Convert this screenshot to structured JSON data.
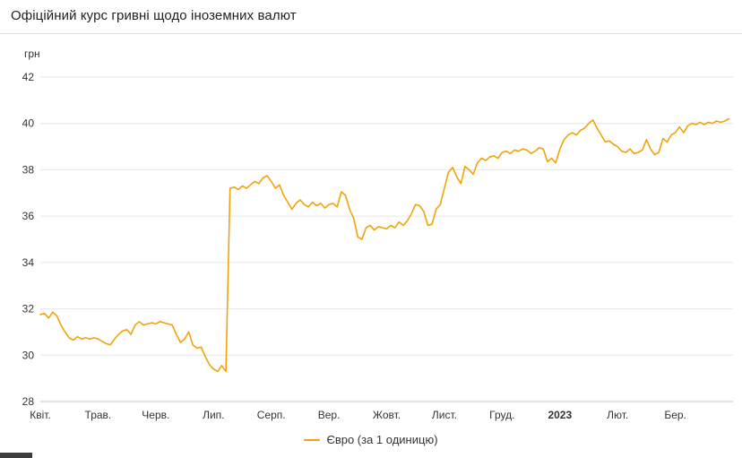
{
  "header": {
    "title": "Офіційний курс гривні щодо іноземних валют"
  },
  "chart_data": {
    "type": "line",
    "title": "Офіційний курс гривні щодо іноземних валют",
    "ylabel": "грн",
    "xlabel": "",
    "ylim": [
      28,
      42
    ],
    "yticks": [
      28,
      30,
      32,
      34,
      36,
      38,
      40,
      42
    ],
    "grid": true,
    "legend_position": "bottom",
    "x_tick_labels": [
      "Квіт.",
      "Трав.",
      "Черв.",
      "Лип.",
      "Серп.",
      "Вер.",
      "Жовт.",
      "Лист.",
      "Груд.",
      "2023",
      "Лют.",
      "Бер."
    ],
    "bold_x_labels": [
      "2023"
    ],
    "series": [
      {
        "name": "Євро (за 1 одиницю)",
        "color": "#f0a30a",
        "values": [
          31.75,
          31.8,
          31.6,
          31.85,
          31.7,
          31.3,
          31.0,
          30.75,
          30.65,
          30.8,
          30.7,
          30.75,
          30.7,
          30.75,
          30.7,
          30.6,
          30.5,
          30.45,
          30.7,
          30.9,
          31.05,
          31.1,
          30.9,
          31.3,
          31.45,
          31.3,
          31.35,
          31.4,
          31.35,
          31.45,
          31.4,
          31.35,
          31.3,
          30.9,
          30.55,
          30.7,
          31.0,
          30.45,
          30.3,
          30.35,
          29.95,
          29.6,
          29.4,
          29.3,
          29.55,
          29.3,
          37.2,
          37.25,
          37.15,
          37.3,
          37.2,
          37.35,
          37.5,
          37.4,
          37.65,
          37.75,
          37.5,
          37.2,
          37.35,
          36.9,
          36.6,
          36.3,
          36.55,
          36.7,
          36.5,
          36.4,
          36.6,
          36.45,
          36.55,
          36.35,
          36.5,
          36.55,
          36.4,
          37.05,
          36.9,
          36.3,
          35.9,
          35.1,
          35.0,
          35.5,
          35.6,
          35.4,
          35.55,
          35.5,
          35.45,
          35.6,
          35.5,
          35.75,
          35.6,
          35.8,
          36.1,
          36.5,
          36.45,
          36.2,
          35.6,
          35.65,
          36.3,
          36.5,
          37.2,
          37.9,
          38.1,
          37.7,
          37.4,
          38.15,
          38.0,
          37.8,
          38.3,
          38.5,
          38.4,
          38.55,
          38.6,
          38.5,
          38.75,
          38.8,
          38.7,
          38.85,
          38.8,
          38.9,
          38.85,
          38.7,
          38.8,
          38.95,
          38.9,
          38.35,
          38.5,
          38.3,
          38.9,
          39.3,
          39.5,
          39.6,
          39.5,
          39.7,
          39.8,
          40.0,
          40.15,
          39.8,
          39.5,
          39.2,
          39.25,
          39.1,
          39.0,
          38.8,
          38.75,
          38.9,
          38.7,
          38.75,
          38.85,
          39.3,
          38.9,
          38.65,
          38.75,
          39.35,
          39.2,
          39.5,
          39.6,
          39.85,
          39.6,
          39.9,
          40.0,
          39.95,
          40.05,
          39.95,
          40.05,
          40.0,
          40.1,
          40.05,
          40.1,
          40.2
        ]
      }
    ],
    "colors": {
      "gridline": "#e6e6e6",
      "axis_line": "#c7c7c7",
      "tick_text": "#333333"
    }
  }
}
